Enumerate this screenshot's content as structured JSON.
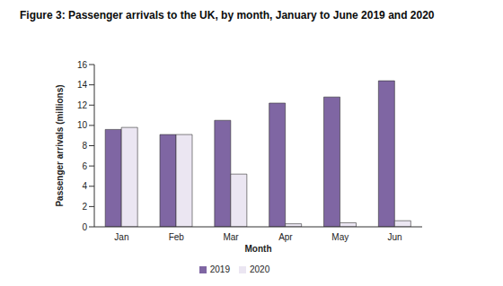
{
  "chart_data": {
    "type": "bar",
    "title": "Figure 3: Passenger arrivals to the UK, by month, January to June 2019 and 2020",
    "x_label": "Month",
    "y_label": "Passenger arrivals (millions)",
    "categories": [
      "Jan",
      "Feb",
      "Mar",
      "Apr",
      "May",
      "Jun"
    ],
    "series": [
      {
        "name": "2019",
        "color": "#7f66a3",
        "values": [
          9.6,
          9.1,
          10.5,
          12.2,
          12.8,
          14.4
        ]
      },
      {
        "name": "2020",
        "color": "#ebe6f2",
        "values": [
          9.8,
          9.1,
          5.2,
          0.3,
          0.4,
          0.6
        ]
      }
    ],
    "ylim": [
      0,
      16
    ],
    "yticks": [
      0,
      2,
      4,
      6,
      8,
      10,
      12,
      14,
      16
    ],
    "grid": false,
    "legend": "bottom"
  }
}
